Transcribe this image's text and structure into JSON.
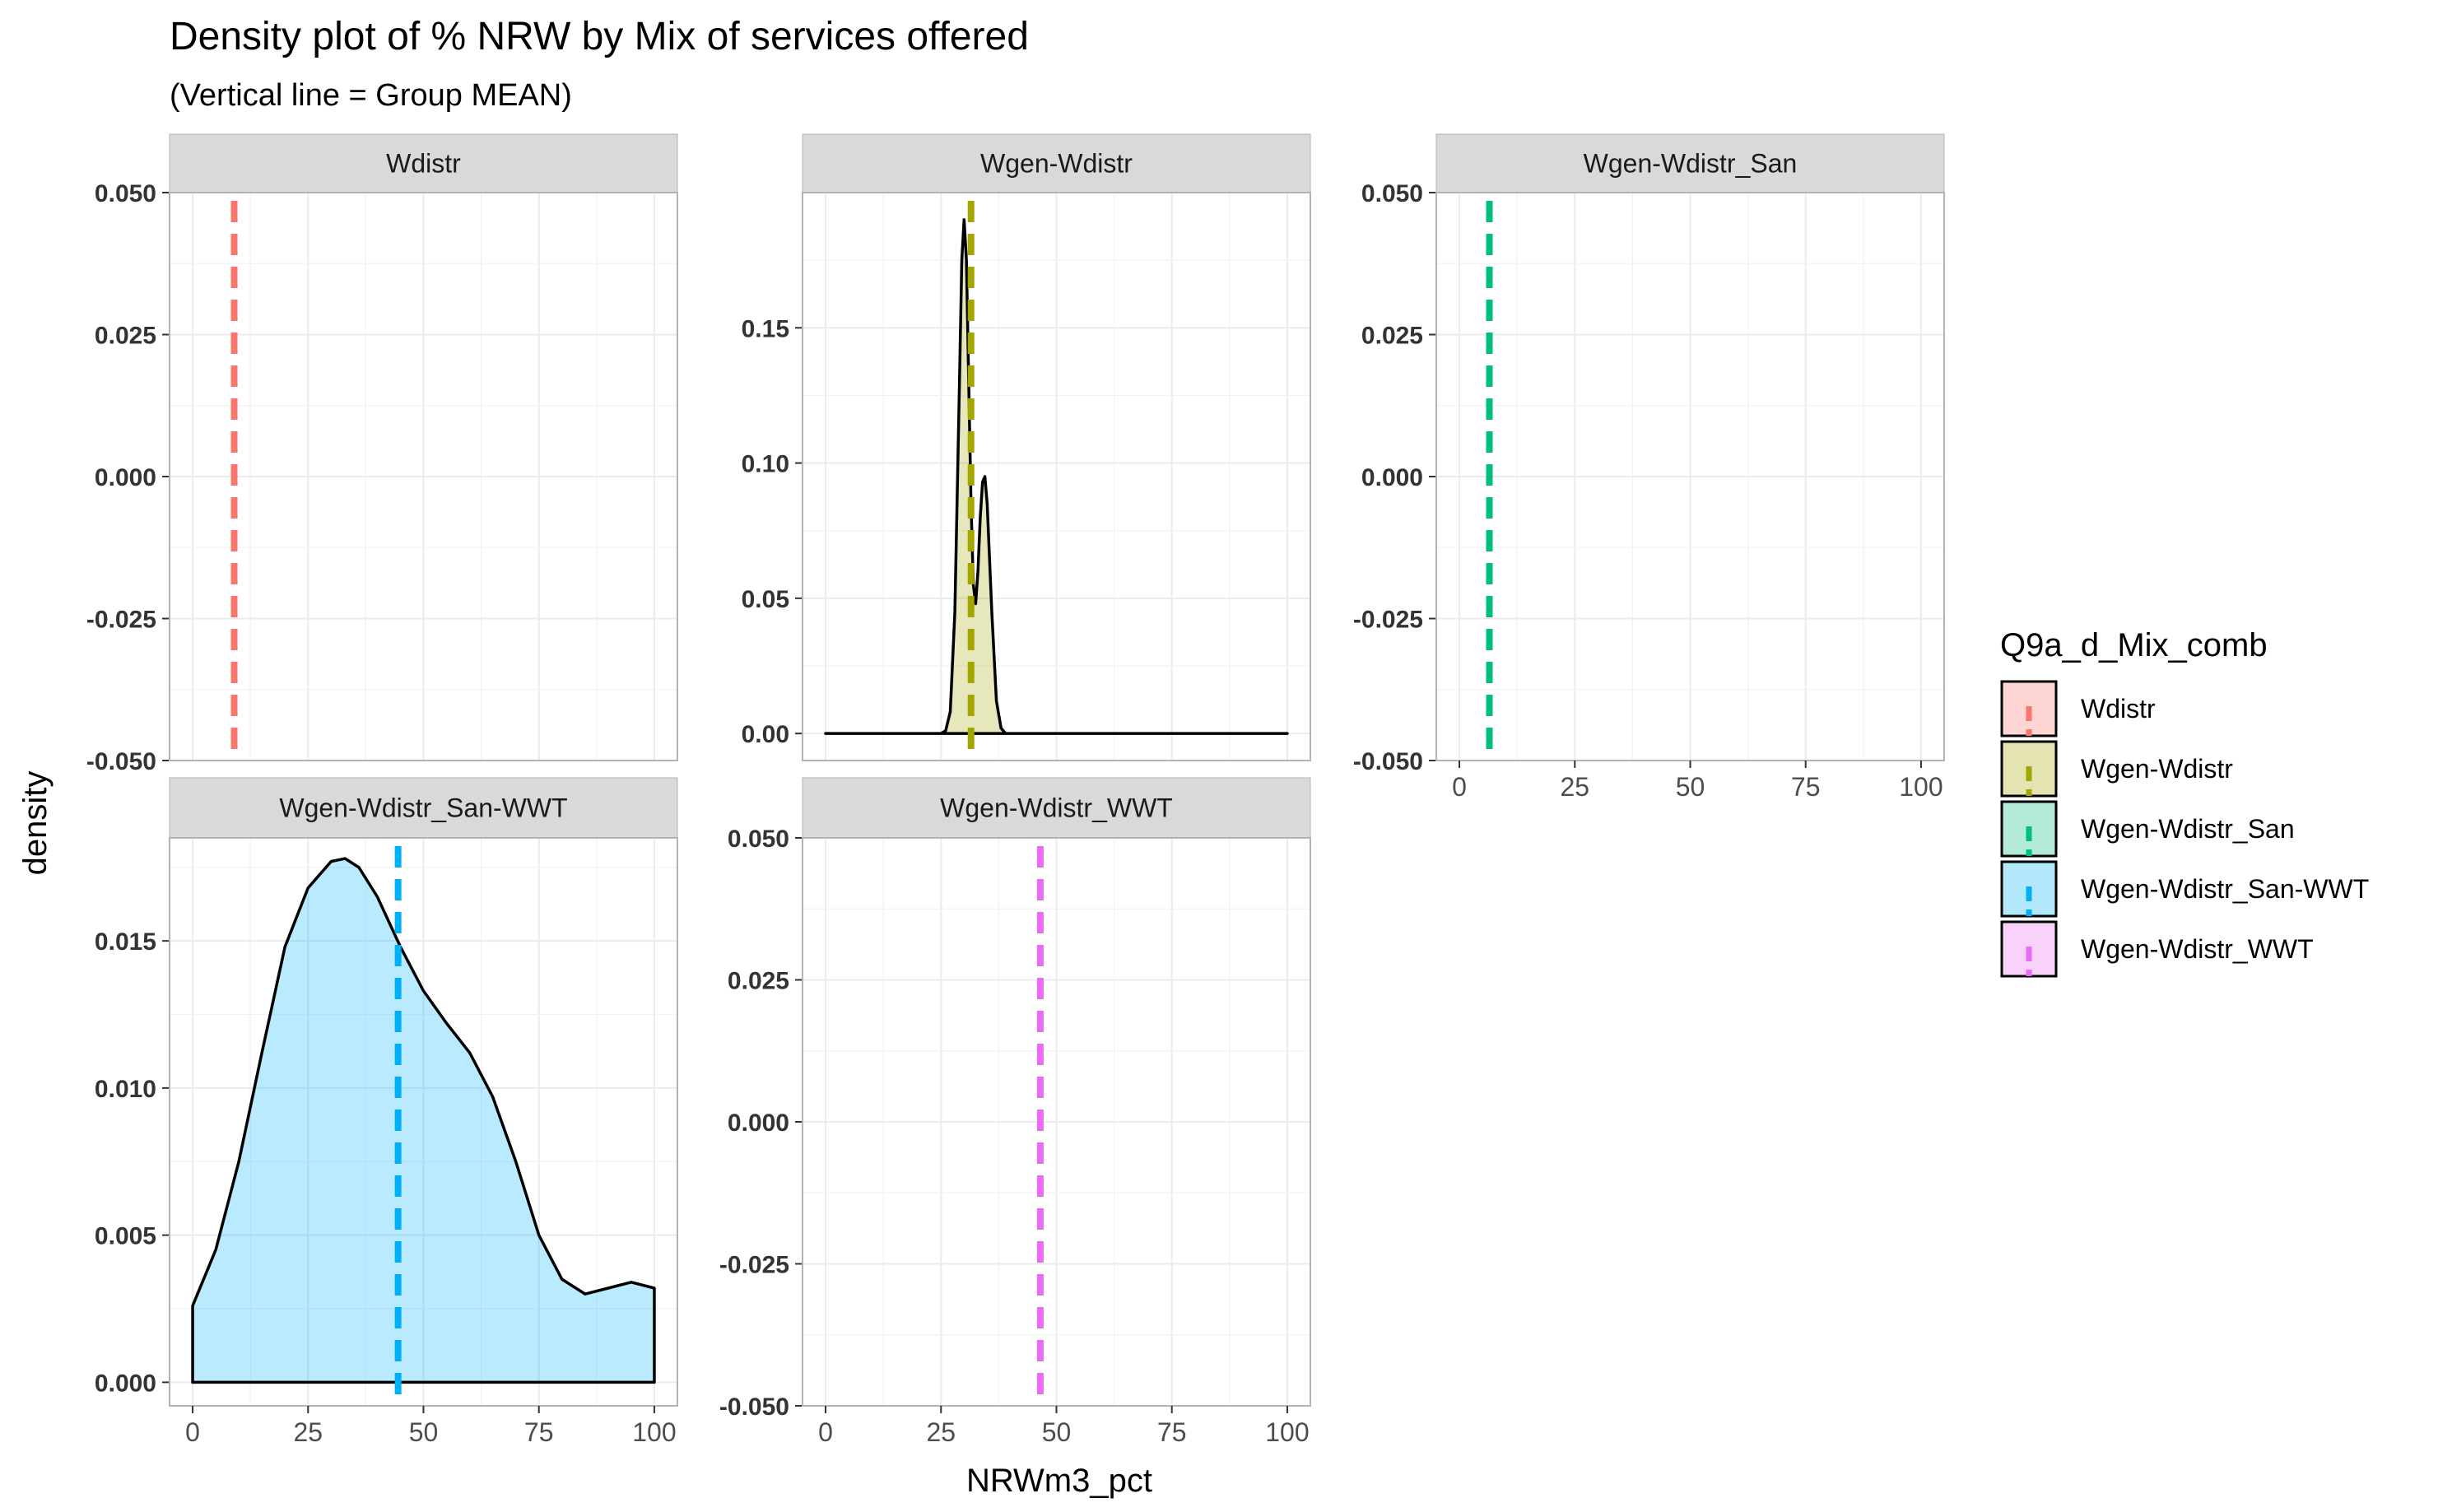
{
  "title": "Density plot of % NRW by Mix of services offered",
  "subtitle": "(Vertical line = Group MEAN)",
  "chart_data": {
    "type": "area",
    "facet_by": "Q9a_d_Mix_comb",
    "xlabel": "NRWm3_pct",
    "ylabel": "density",
    "xlim": [
      -5,
      105
    ],
    "x_ticks": [
      "0",
      "25",
      "50",
      "75",
      "100"
    ],
    "grid": true,
    "legend": {
      "title": "Q9a_d_Mix_comb",
      "position": "right",
      "items": [
        {
          "label": "Wdistr",
          "color": "#F8766D"
        },
        {
          "label": "Wgen-Wdistr",
          "color": "#A3A500"
        },
        {
          "label": "Wgen-Wdistr_San",
          "color": "#00BF7D"
        },
        {
          "label": "Wgen-Wdistr_San-WWT",
          "color": "#00B0F6"
        },
        {
          "label": "Wgen-Wdistr_WWT",
          "color": "#E76BF3"
        }
      ]
    },
    "panels": [
      {
        "name": "Wdistr",
        "color": "#F8766D",
        "mean": 9,
        "ylim": [
          -0.05,
          0.05
        ],
        "y_ticks": [
          "-0.050",
          "-0.025",
          "0.000",
          "0.025",
          "0.050"
        ],
        "density": []
      },
      {
        "name": "Wgen-Wdistr",
        "color": "#A3A500",
        "mean": 31.5,
        "ylim": [
          -0.01,
          0.2
        ],
        "y_ticks": [
          "0.00",
          "0.05",
          "0.10",
          "0.15"
        ],
        "density": [
          [
            0,
            0.0
          ],
          [
            25,
            0.0
          ],
          [
            26,
            0.001
          ],
          [
            27,
            0.008
          ],
          [
            28,
            0.045
          ],
          [
            29,
            0.13
          ],
          [
            29.5,
            0.175
          ],
          [
            30,
            0.19
          ],
          [
            30.5,
            0.175
          ],
          [
            31,
            0.13
          ],
          [
            31.5,
            0.085
          ],
          [
            32,
            0.055
          ],
          [
            32.5,
            0.048
          ],
          [
            33,
            0.06
          ],
          [
            33.5,
            0.08
          ],
          [
            34,
            0.093
          ],
          [
            34.5,
            0.095
          ],
          [
            35,
            0.085
          ],
          [
            36,
            0.045
          ],
          [
            37,
            0.012
          ],
          [
            38,
            0.002
          ],
          [
            39,
            0.0
          ],
          [
            100,
            0.0
          ]
        ]
      },
      {
        "name": "Wgen-Wdistr_San",
        "color": "#00BF7D",
        "mean": 6.5,
        "ylim": [
          -0.05,
          0.05
        ],
        "y_ticks": [
          "-0.050",
          "-0.025",
          "0.000",
          "0.025",
          "0.050"
        ],
        "density": []
      },
      {
        "name": "Wgen-Wdistr_San-WWT",
        "color": "#00B0F6",
        "mean": 44.5,
        "ylim": [
          -0.0008,
          0.0185
        ],
        "y_ticks": [
          "0.000",
          "0.005",
          "0.010",
          "0.015"
        ],
        "density": [
          [
            0,
            0.0026
          ],
          [
            5,
            0.0045
          ],
          [
            10,
            0.0075
          ],
          [
            15,
            0.0112
          ],
          [
            20,
            0.0148
          ],
          [
            25,
            0.0168
          ],
          [
            30,
            0.0177
          ],
          [
            33,
            0.0178
          ],
          [
            36,
            0.0175
          ],
          [
            40,
            0.0165
          ],
          [
            45,
            0.0148
          ],
          [
            50,
            0.0133
          ],
          [
            55,
            0.0122
          ],
          [
            60,
            0.0112
          ],
          [
            65,
            0.0097
          ],
          [
            70,
            0.0075
          ],
          [
            75,
            0.005
          ],
          [
            80,
            0.0035
          ],
          [
            85,
            0.003
          ],
          [
            90,
            0.0032
          ],
          [
            95,
            0.0034
          ],
          [
            100,
            0.0032
          ]
        ]
      },
      {
        "name": "Wgen-Wdistr_WWT",
        "color": "#E76BF3",
        "mean": 46.5,
        "ylim": [
          -0.05,
          0.05
        ],
        "y_ticks": [
          "-0.050",
          "-0.025",
          "0.000",
          "0.025",
          "0.050"
        ],
        "density": []
      }
    ]
  }
}
